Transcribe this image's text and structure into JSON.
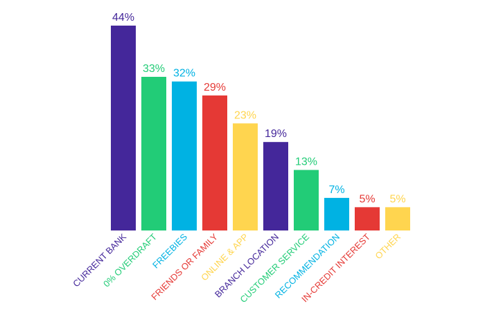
{
  "chart_data": {
    "type": "bar",
    "categories": [
      "CURRENT BANK",
      "0% OVERDRAFT",
      "FREEBIES",
      "FRIENDS OR FAMILY",
      "ONLINE & APP",
      "BRANCH LOCATION",
      "CUSTOMER SERVICE",
      "RECOMMENDATION",
      "IN-CREDIT INTEREST",
      "OTHER"
    ],
    "values": [
      44,
      33,
      32,
      29,
      23,
      19,
      13,
      7,
      5,
      5
    ],
    "value_labels": [
      "44%",
      "33%",
      "32%",
      "29%",
      "23%",
      "19%",
      "13%",
      "7%",
      "5%",
      "5%"
    ],
    "colors": [
      "#44279a",
      "#22cc77",
      "#00b2e3",
      "#e53935",
      "#ffd54f",
      "#44279a",
      "#22cc77",
      "#00b2e3",
      "#e53935",
      "#ffd54f"
    ],
    "title": "",
    "xlabel": "",
    "ylabel": "",
    "ylim": [
      0,
      44
    ],
    "grid": false,
    "legend": "none"
  }
}
